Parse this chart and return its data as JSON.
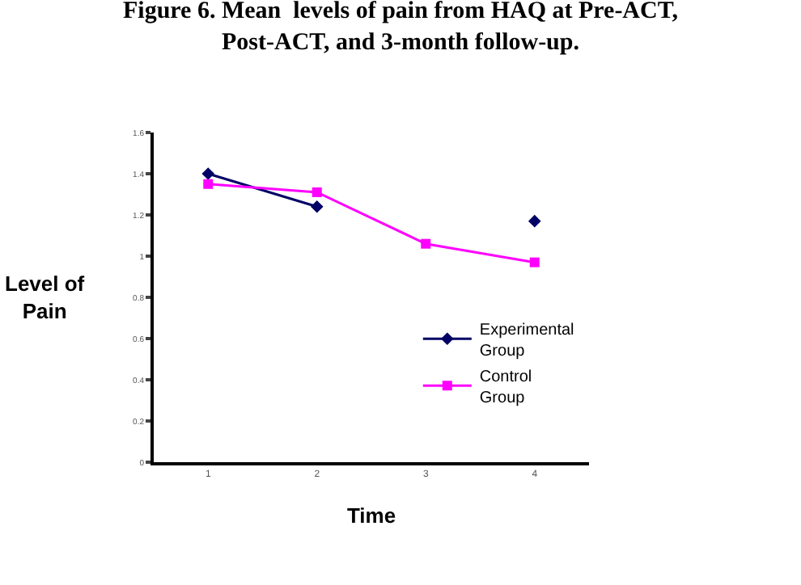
{
  "chart_data": {
    "type": "line",
    "title": "Figure 6. Mean  levels of pain from HAQ at Pre-ACT, Post-ACT, and 3-month follow-up.",
    "xlabel": "Time",
    "ylabel": "Level of Pain",
    "categories": [
      "1",
      "2",
      "3",
      "4"
    ],
    "series": [
      {
        "name": "Experimental Group",
        "color": "#000066",
        "marker": "diamond",
        "values": [
          1.4,
          1.24,
          null,
          1.17
        ]
      },
      {
        "name": "Control Group",
        "color": "#ff00ff",
        "marker": "square",
        "values": [
          1.35,
          1.31,
          1.06,
          0.97
        ]
      }
    ],
    "ylim": [
      0,
      1.6
    ],
    "yticks": [
      0,
      0.2,
      0.4,
      0.6,
      0.8,
      1,
      1.2,
      1.4,
      1.6
    ],
    "grid": false,
    "legend": "right",
    "line_style": "solid"
  }
}
